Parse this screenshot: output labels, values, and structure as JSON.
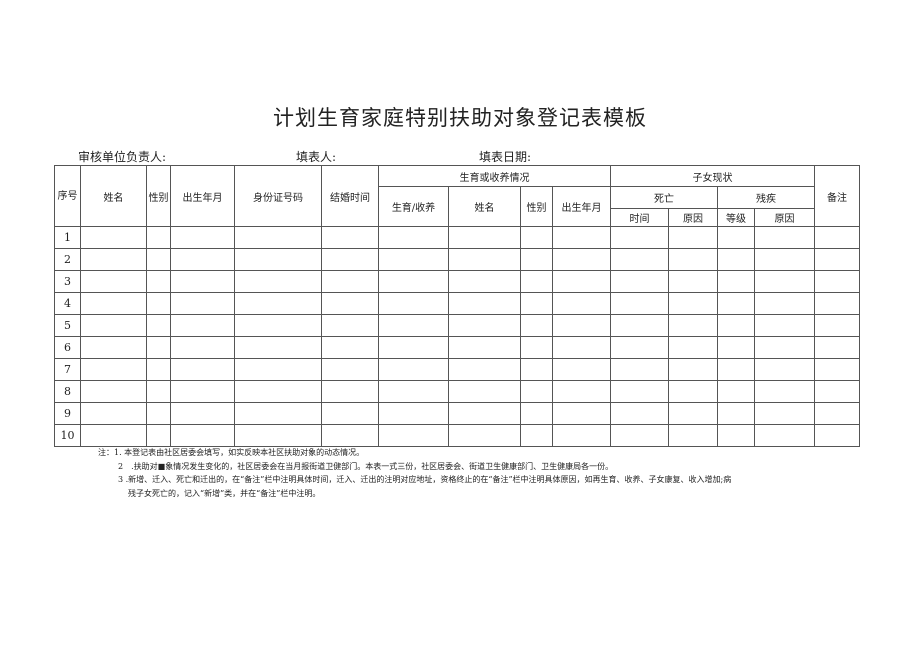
{
  "title": "计划生育家庭特别扶助对象登记表模板",
  "meta": {
    "reviewer": "审核单位负责人:",
    "filler": "填表人:",
    "date": "填表日期:"
  },
  "headers": {
    "seq": "序号",
    "name": "姓名",
    "gender": "性别",
    "birth": "出生年月",
    "id": "身份证号码",
    "marriage": "结婚时间",
    "birth_group": "生育或收养情况",
    "birth_adopt": "生育/收养",
    "child_name": "姓名",
    "child_gender": "性别",
    "child_birth": "出生年月",
    "child_status": "子女现状",
    "death": "死亡",
    "death_time": "时间",
    "death_reason": "原因",
    "disability": "残疾",
    "dis_level": "等级",
    "dis_reason": "原因",
    "remarks": "备注"
  },
  "rows": [
    "1",
    "2",
    "3",
    "4",
    "5",
    "6",
    "7",
    "8",
    "9",
    "10"
  ],
  "notes": [
    "注：1. 本登记表由社区居委会填写，如实反映本社区扶助对象的动态情况。",
    "2　.扶助对■象情况发生变化的，社区居委会在当月报街道卫健部门。本表一式三份，社区居委会、街道卫生健康部门、卫生健康局各一份。",
    "3 .新增、迁入、死亡和迁出的，在“备注”栏中注明具体时间，迁入、迁出的注明对应地址，资格终止的在“备注”栏中注明具体原因，如再生育、收养、子女康复、收入增加;病",
    "残子女死亡的，记入“新增”类，并在“备注”栏中注明。"
  ]
}
